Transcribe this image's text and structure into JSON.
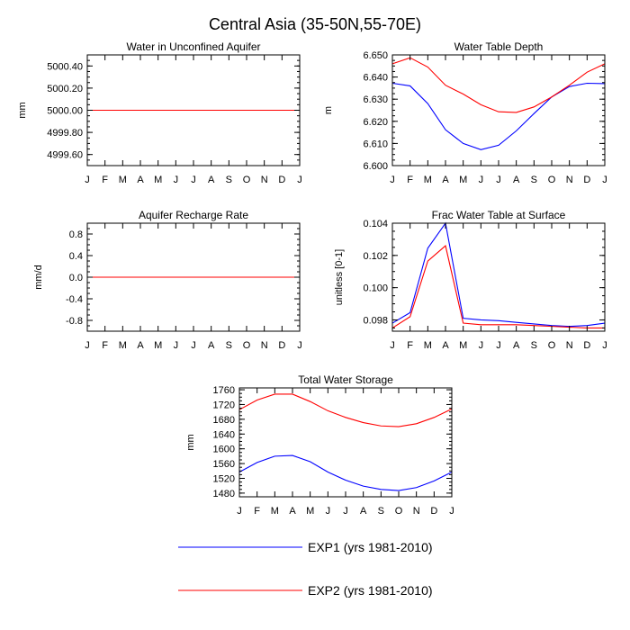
{
  "figure_title": "Central Asia (35-50N,55-70E)",
  "colors": {
    "exp1": "#0000ff",
    "exp2": "#ff0000"
  },
  "months": [
    "J",
    "F",
    "M",
    "A",
    "M",
    "J",
    "J",
    "A",
    "S",
    "O",
    "N",
    "D",
    "J"
  ],
  "legend": [
    {
      "label": "EXP1 (yrs 1981-2010)",
      "color": "#0000ff"
    },
    {
      "label": "EXP2 (yrs 1981-2010)",
      "color": "#ff0000"
    }
  ],
  "chart_data": [
    {
      "type": "line",
      "title": "Water in Unconfined Aquifer",
      "ylabel": "mm",
      "ylim": [
        4999.5,
        5000.5
      ],
      "yticks": [
        "4999.60",
        "4999.80",
        "5000.00",
        "5000.20",
        "5000.40"
      ],
      "ytick_values": [
        4999.6,
        4999.8,
        5000.0,
        5000.2,
        5000.4
      ],
      "series": [
        {
          "name": "EXP1 (yrs 1981-2010)",
          "color": "#0000ff",
          "values": [
            5000,
            5000,
            5000,
            5000,
            5000,
            5000,
            5000,
            5000,
            5000,
            5000,
            5000,
            5000,
            5000
          ]
        },
        {
          "name": "EXP2 (yrs 1981-2010)",
          "color": "#ff0000",
          "values": [
            5000,
            5000,
            5000,
            5000,
            5000,
            5000,
            5000,
            5000,
            5000,
            5000,
            5000,
            5000,
            5000
          ]
        }
      ]
    },
    {
      "type": "line",
      "title": "Water Table Depth",
      "ylabel": "m",
      "ylim": [
        6.6,
        6.65
      ],
      "yticks": [
        "6.600",
        "6.610",
        "6.620",
        "6.630",
        "6.640",
        "6.650"
      ],
      "ytick_values": [
        6.6,
        6.61,
        6.62,
        6.63,
        6.64,
        6.65
      ],
      "series": [
        {
          "name": "EXP1 (yrs 1981-2010)",
          "color": "#0000ff",
          "values": [
            6.6372,
            6.636,
            6.628,
            6.6162,
            6.61,
            6.6072,
            6.6092,
            6.6157,
            6.6235,
            6.631,
            6.6357,
            6.6372,
            6.637
          ]
        },
        {
          "name": "EXP2 (yrs 1981-2010)",
          "color": "#ff0000",
          "values": [
            6.646,
            6.6487,
            6.6445,
            6.6363,
            6.6323,
            6.6275,
            6.6243,
            6.624,
            6.6265,
            6.631,
            6.6363,
            6.6422,
            6.646
          ]
        }
      ]
    },
    {
      "type": "line",
      "title": "Aquifer Recharge Rate",
      "ylabel": "mm/d",
      "ylim": [
        -1.0,
        1.0
      ],
      "yticks": [
        "-0.8",
        "-0.4",
        "0.0",
        "0.4",
        "0.8"
      ],
      "ytick_values": [
        -0.8,
        -0.4,
        0.0,
        0.4,
        0.8
      ],
      "series": [
        {
          "name": "EXP1 (yrs 1981-2010)",
          "color": "#0000ff",
          "values": [
            0,
            0,
            0,
            0,
            0,
            0,
            0,
            0,
            0,
            0,
            0,
            0,
            0
          ]
        },
        {
          "name": "EXP2 (yrs 1981-2010)",
          "color": "#ff0000",
          "values": [
            0,
            0,
            0,
            0,
            0,
            0,
            0,
            0,
            0,
            0,
            0,
            0,
            0
          ]
        }
      ]
    },
    {
      "type": "line",
      "title": "Frac Water Table at Surface",
      "ylabel": "unitless [0-1]",
      "ylim": [
        0.0973,
        0.104
      ],
      "yticks": [
        "0.098",
        "0.100",
        "0.102",
        "0.104"
      ],
      "ytick_values": [
        0.098,
        0.1,
        0.102,
        0.104
      ],
      "series": [
        {
          "name": "EXP1 (yrs 1981-2010)",
          "color": "#0000ff",
          "values": [
            0.0978,
            0.09845,
            0.10245,
            0.104,
            0.0981,
            0.098,
            0.09795,
            0.09785,
            0.09775,
            0.09765,
            0.0976,
            0.09765,
            0.0978
          ]
        },
        {
          "name": "EXP2 (yrs 1981-2010)",
          "color": "#ff0000",
          "values": [
            0.0975,
            0.0982,
            0.10165,
            0.1026,
            0.0978,
            0.0977,
            0.0977,
            0.0977,
            0.09765,
            0.0976,
            0.09755,
            0.0975,
            0.0975
          ]
        }
      ]
    },
    {
      "type": "line",
      "title": "Total Water Storage",
      "ylabel": "mm",
      "ylim": [
        1470,
        1765
      ],
      "yticks": [
        "1480",
        "1520",
        "1560",
        "1600",
        "1640",
        "1680",
        "1720",
        "1760"
      ],
      "ytick_values": [
        1480,
        1520,
        1560,
        1600,
        1640,
        1680,
        1720,
        1760
      ],
      "series": [
        {
          "name": "EXP1 (yrs 1981-2010)",
          "color": "#0000ff",
          "values": [
            1537,
            1563,
            1580,
            1582,
            1565,
            1537,
            1515,
            1499,
            1490,
            1487,
            1495,
            1513,
            1537
          ]
        },
        {
          "name": "EXP2 (yrs 1981-2010)",
          "color": "#ff0000",
          "values": [
            1706,
            1732,
            1748,
            1748,
            1728,
            1703,
            1685,
            1671,
            1662,
            1660,
            1668,
            1685,
            1708
          ]
        }
      ]
    }
  ]
}
